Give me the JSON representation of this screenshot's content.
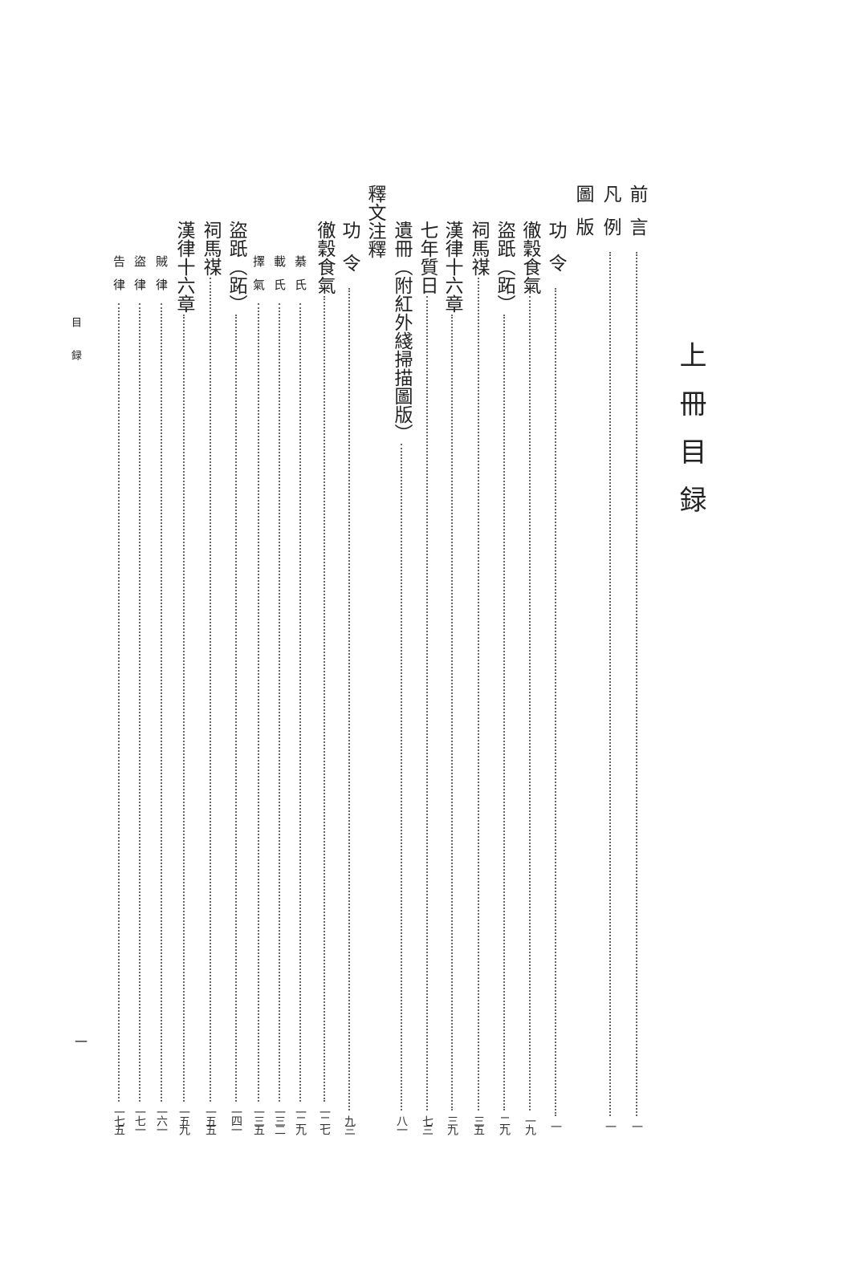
{
  "title": "上冊目録",
  "running_head": "目録",
  "folio": "一",
  "entries": [
    {
      "title": "前言",
      "page": "一",
      "level": 1
    },
    {
      "title": "凡例",
      "page": "一",
      "level": 1
    },
    {
      "title": "圖版",
      "page": "",
      "level": 1
    },
    {
      "title": "功令",
      "page": "一",
      "level": 2
    },
    {
      "title": "徹穀食氣",
      "page": "一九",
      "level": 2
    },
    {
      "title": "盜䟗（跖）",
      "page": "二九",
      "level": 2
    },
    {
      "title": "祠馬禖",
      "page": "三五",
      "level": 2
    },
    {
      "title": "漢律十六章",
      "page": "三九",
      "level": 2
    },
    {
      "title": "七年質日",
      "page": "七三",
      "level": 2
    },
    {
      "title": "遺冊（附紅外綫掃描圖版）",
      "page": "八一",
      "level": 2
    },
    {
      "title": "釋文注釋",
      "page": "",
      "level": 1
    },
    {
      "title": "功令",
      "page": "九三",
      "level": 2
    },
    {
      "title": "徹穀食氣",
      "page": "一二七",
      "level": 2
    },
    {
      "title": "綦氏",
      "page": "一二九",
      "level": 3
    },
    {
      "title": "載氏",
      "page": "一三二",
      "level": 3
    },
    {
      "title": "擇氣",
      "page": "一三五",
      "level": 3
    },
    {
      "title": "盜䟗（跖）",
      "page": "一四一",
      "level": 2
    },
    {
      "title": "祠馬禖",
      "page": "一五五",
      "level": 2
    },
    {
      "title": "漢律十六章",
      "page": "一五九",
      "level": 2
    },
    {
      "title": "賊律",
      "page": "一六一",
      "level": 3
    },
    {
      "title": "盜律",
      "page": "一七一",
      "level": 3
    },
    {
      "title": "告律",
      "page": "一七五",
      "level": 3
    }
  ]
}
